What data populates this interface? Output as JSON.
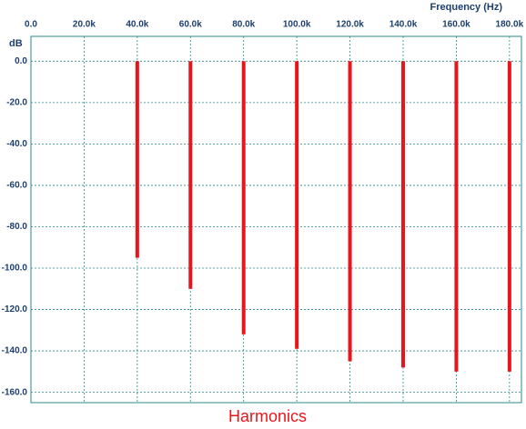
{
  "chart_data": {
    "type": "bar",
    "title": "Harmonics",
    "x_label": "Frequency  (Hz)",
    "y_label": "dB",
    "x": [
      40000,
      60000,
      80000,
      100000,
      120000,
      140000,
      160000,
      180000
    ],
    "values": [
      -95,
      -110,
      -132,
      -139,
      -145,
      -148,
      -150,
      -150
    ],
    "color": "#e8161c",
    "xlim": [
      0,
      184500
    ],
    "ylim": [
      -165,
      12
    ],
    "xticks": [
      {
        "value": 0,
        "label": "0.0"
      },
      {
        "value": 20000,
        "label": "20.0k"
      },
      {
        "value": 40000,
        "label": "40.0k"
      },
      {
        "value": 60000,
        "label": "60.0k"
      },
      {
        "value": 80000,
        "label": "80.0k"
      },
      {
        "value": 100000,
        "label": "100.0k"
      },
      {
        "value": 120000,
        "label": "120.0k"
      },
      {
        "value": 140000,
        "label": "140.0k"
      },
      {
        "value": 160000,
        "label": "160.0k"
      },
      {
        "value": 180000,
        "label": "180.0k"
      }
    ],
    "yticks": [
      {
        "value": 0,
        "label": "0.0"
      },
      {
        "value": -20,
        "label": "-20.0"
      },
      {
        "value": -40,
        "label": "-40.0"
      },
      {
        "value": -60,
        "label": "-60.0"
      },
      {
        "value": -80,
        "label": "-80.0"
      },
      {
        "value": -100,
        "label": "-100.0"
      },
      {
        "value": -120,
        "label": "-120.0"
      },
      {
        "value": -140,
        "label": "-140.0"
      },
      {
        "value": -160,
        "label": "-160.0"
      }
    ],
    "grid": true
  }
}
